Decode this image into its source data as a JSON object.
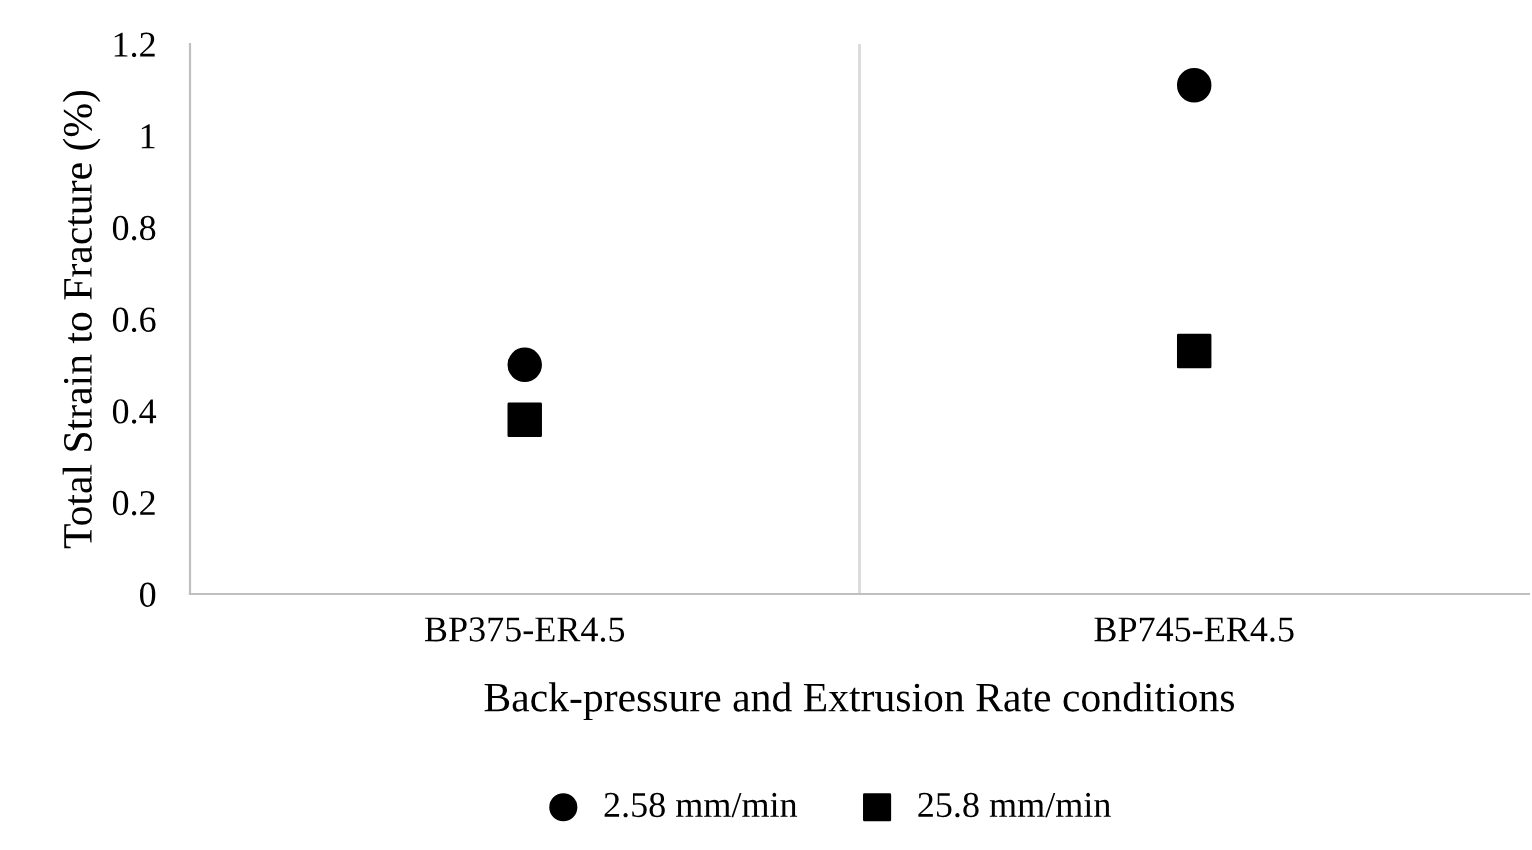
{
  "chart_data": {
    "type": "scatter",
    "xlabel": "Back-pressure and Extrusion Rate conditions",
    "ylabel": "Total Strain to Fracture (%)",
    "categories": [
      "BP375-ER4.5",
      "BP745-ER4.5"
    ],
    "series": [
      {
        "name": "2.58 mm/min",
        "color": "#000000",
        "marker": "circle",
        "values": [
          0.5,
          1.11
        ]
      },
      {
        "name": "25.8 mm/min",
        "color": "#000000",
        "marker": "square",
        "values": [
          0.38,
          0.53
        ]
      }
    ],
    "ylim": [
      0,
      1.2
    ],
    "yticks": [
      0,
      0.2,
      0.4,
      0.6,
      0.8,
      1,
      1.2
    ],
    "grid": "x",
    "legend": "bottom"
  }
}
